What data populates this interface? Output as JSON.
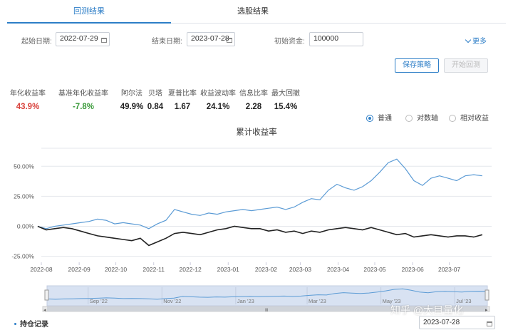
{
  "tabs": [
    {
      "label": "回测结果",
      "active": true
    },
    {
      "label": "选股结果",
      "active": false
    }
  ],
  "form": {
    "start_label": "起始日期:",
    "start_value": "2022-07-29",
    "end_label": "结束日期:",
    "end_value": "2023-07-28",
    "capital_label": "初始资金:",
    "capital_value": "100000",
    "more_label": "更多"
  },
  "buttons": {
    "save": "保存策略",
    "start": "开始回测"
  },
  "metrics": [
    {
      "label": "年化收益率",
      "value": "43.9%",
      "color": "red"
    },
    {
      "label": "基准年化收益率",
      "value": "-7.8%",
      "color": "green"
    },
    {
      "label": "阿尔法",
      "value": "49.9%",
      "color": ""
    },
    {
      "label": "贝塔",
      "value": "0.84",
      "color": ""
    },
    {
      "label": "夏普比率",
      "value": "1.67",
      "color": ""
    },
    {
      "label": "收益波动率",
      "value": "24.1%",
      "color": ""
    },
    {
      "label": "信息比率",
      "value": "2.28",
      "color": ""
    },
    {
      "label": "最大回撤",
      "value": "15.4%",
      "color": ""
    }
  ],
  "radios": [
    {
      "label": "普通",
      "selected": true
    },
    {
      "label": "对数轴",
      "selected": false
    },
    {
      "label": "相对收益",
      "selected": false
    }
  ],
  "positions": {
    "title": "持仓记录",
    "date": "2023-07-28"
  },
  "watermark": "知乎 @大目量化",
  "colors": {
    "accent": "#2d7ec7",
    "strategy": "#5b9bd5",
    "benchmark": "#222222",
    "positive": "#d9433d",
    "negative": "#3a9a3a"
  },
  "chart_data": {
    "type": "line",
    "title": "累计收益率",
    "y_ticks": [
      "50.00%",
      "25.00%",
      "0.00%",
      "-25.00%"
    ],
    "x_ticks": [
      "2022-08",
      "2022-09",
      "2022-10",
      "2022-11",
      "2022-12",
      "2023-01",
      "2023-02",
      "2023-03",
      "2023-04",
      "2023-05",
      "2023-06",
      "2023-07"
    ],
    "navigator_ticks": [
      "Sep '22",
      "Nov '22",
      "Jan '23",
      "Mar '23",
      "May '23",
      "Jul '23"
    ],
    "ylim": [
      -30,
      65
    ],
    "x": [
      "2022-07-29",
      "2022-08-05",
      "2022-08-12",
      "2022-08-19",
      "2022-08-26",
      "2022-09-02",
      "2022-09-09",
      "2022-09-16",
      "2022-09-23",
      "2022-09-30",
      "2022-10-07",
      "2022-10-14",
      "2022-10-21",
      "2022-10-28",
      "2022-11-04",
      "2022-11-11",
      "2022-11-18",
      "2022-11-25",
      "2022-12-02",
      "2022-12-09",
      "2022-12-16",
      "2022-12-23",
      "2022-12-30",
      "2023-01-06",
      "2023-01-13",
      "2023-01-20",
      "2023-01-27",
      "2023-02-03",
      "2023-02-10",
      "2023-02-17",
      "2023-02-24",
      "2023-03-03",
      "2023-03-10",
      "2023-03-17",
      "2023-03-24",
      "2023-03-31",
      "2023-04-07",
      "2023-04-14",
      "2023-04-21",
      "2023-04-28",
      "2023-05-05",
      "2023-05-12",
      "2023-05-19",
      "2023-05-26",
      "2023-06-02",
      "2023-06-09",
      "2023-06-16",
      "2023-06-23",
      "2023-06-30",
      "2023-07-07",
      "2023-07-14",
      "2023-07-21",
      "2023-07-28"
    ],
    "series": [
      {
        "name": "",
        "values": [
          0,
          -2,
          0,
          1,
          2,
          3,
          4,
          6,
          5,
          2,
          3,
          2,
          1,
          -2,
          2,
          5,
          14,
          12,
          10,
          9,
          11,
          10,
          12,
          13,
          14,
          13,
          14,
          15,
          16,
          14,
          16,
          20,
          23,
          22,
          30,
          35,
          32,
          30,
          33,
          38,
          45,
          53,
          56,
          48,
          38,
          34,
          40,
          42,
          40,
          38,
          42,
          43,
          42
        ]
      },
      {
        "name": "",
        "values": [
          0,
          -3,
          -2,
          -1,
          -2,
          -4,
          -6,
          -8,
          -9,
          -10,
          -11,
          -12,
          -10,
          -16,
          -13,
          -10,
          -6,
          -5,
          -6,
          -7,
          -5,
          -3,
          -2,
          0,
          -1,
          -2,
          -2,
          -4,
          -3,
          -5,
          -4,
          -6,
          -4,
          -5,
          -3,
          -2,
          -1,
          -2,
          -3,
          -1,
          -3,
          -5,
          -7,
          -6,
          -9,
          -8,
          -7,
          -8,
          -9,
          -8,
          -8,
          -9,
          -7
        ]
      }
    ]
  }
}
